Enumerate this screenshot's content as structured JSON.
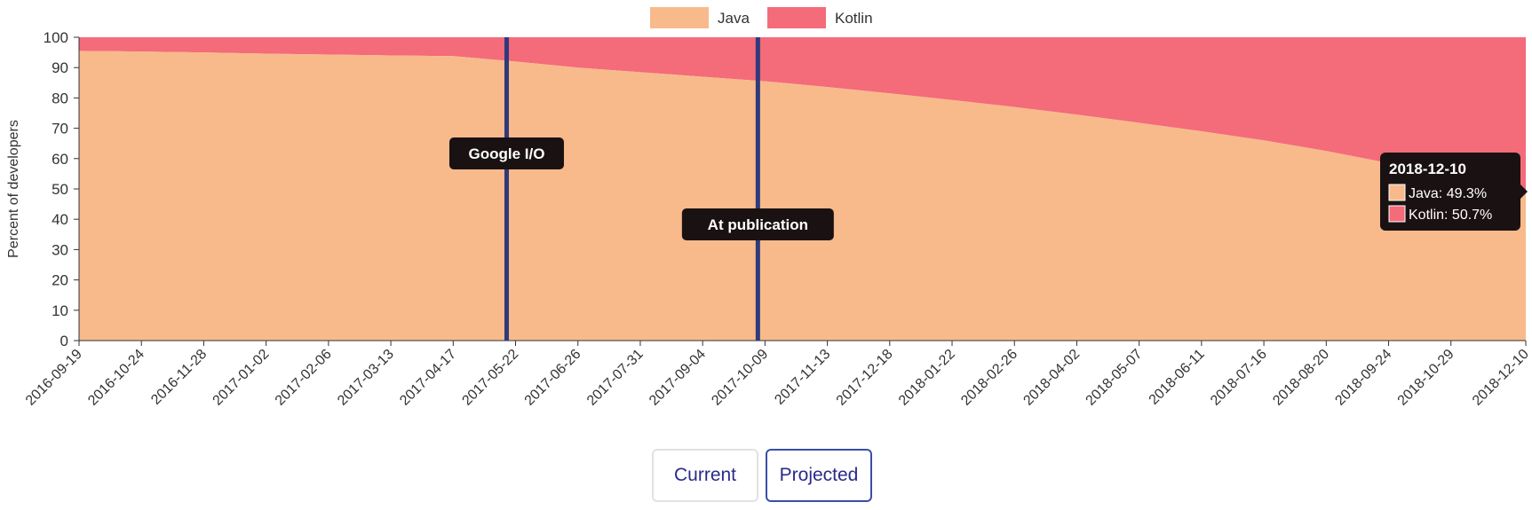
{
  "chart_data": {
    "type": "area",
    "stacked": true,
    "normalized_percent": true,
    "ylabel": "Percent of developers",
    "ylim": [
      0,
      100
    ],
    "yticks": [
      0,
      10,
      20,
      30,
      40,
      50,
      60,
      70,
      80,
      90,
      100
    ],
    "grid": false,
    "legend_position": "top-center",
    "x_tick_labels": [
      "2016-09-19",
      "2016-10-24",
      "2016-11-28",
      "2017-01-02",
      "2017-02-06",
      "2017-03-13",
      "2017-04-17",
      "2017-05-22",
      "2017-06-26",
      "2017-07-31",
      "2017-09-04",
      "2017-10-09",
      "2017-11-13",
      "2017-12-18",
      "2018-01-22",
      "2018-02-26",
      "2018-04-02",
      "2018-05-07",
      "2018-06-11",
      "2018-07-16",
      "2018-08-20",
      "2018-09-24",
      "2018-10-29",
      "2018-12-10"
    ],
    "x": [
      "2016-09-19",
      "2016-10-24",
      "2016-11-28",
      "2017-01-02",
      "2017-02-06",
      "2017-03-13",
      "2017-04-17",
      "2017-05-22",
      "2017-06-26",
      "2017-07-31",
      "2017-09-04",
      "2017-10-09",
      "2017-11-13",
      "2017-12-18",
      "2018-01-22",
      "2018-02-26",
      "2018-04-02",
      "2018-05-07",
      "2018-06-11",
      "2018-07-16",
      "2018-08-20",
      "2018-09-24",
      "2018-10-29",
      "2018-12-10"
    ],
    "series": [
      {
        "name": "Java",
        "color": "#f8ba8b",
        "values": [
          95.5,
          95.3,
          95.0,
          94.6,
          94.3,
          94.0,
          93.8,
          92.0,
          90.0,
          88.5,
          87.0,
          85.5,
          83.6,
          81.5,
          79.3,
          77.0,
          74.5,
          71.8,
          69.0,
          66.0,
          62.5,
          58.5,
          54.0,
          49.3
        ]
      },
      {
        "name": "Kotlin",
        "color": "#f46b7a",
        "values": [
          4.5,
          4.7,
          5.0,
          5.4,
          5.7,
          6.0,
          6.2,
          8.0,
          10.0,
          11.5,
          13.0,
          14.5,
          16.4,
          18.5,
          20.7,
          23.0,
          25.5,
          28.2,
          31.0,
          34.0,
          37.5,
          41.5,
          46.0,
          50.7
        ]
      }
    ],
    "annotations": [
      {
        "label": "Google I/O",
        "x": "2017-05-17"
      },
      {
        "label": "At publication",
        "x": "2017-10-05"
      }
    ],
    "tooltip": {
      "title": "2018-12-10",
      "rows": [
        "Java: 49.3%",
        "Kotlin: 50.7%"
      ]
    }
  },
  "buttons": {
    "current_label": "Current",
    "projected_label": "Projected",
    "active": "projected"
  }
}
